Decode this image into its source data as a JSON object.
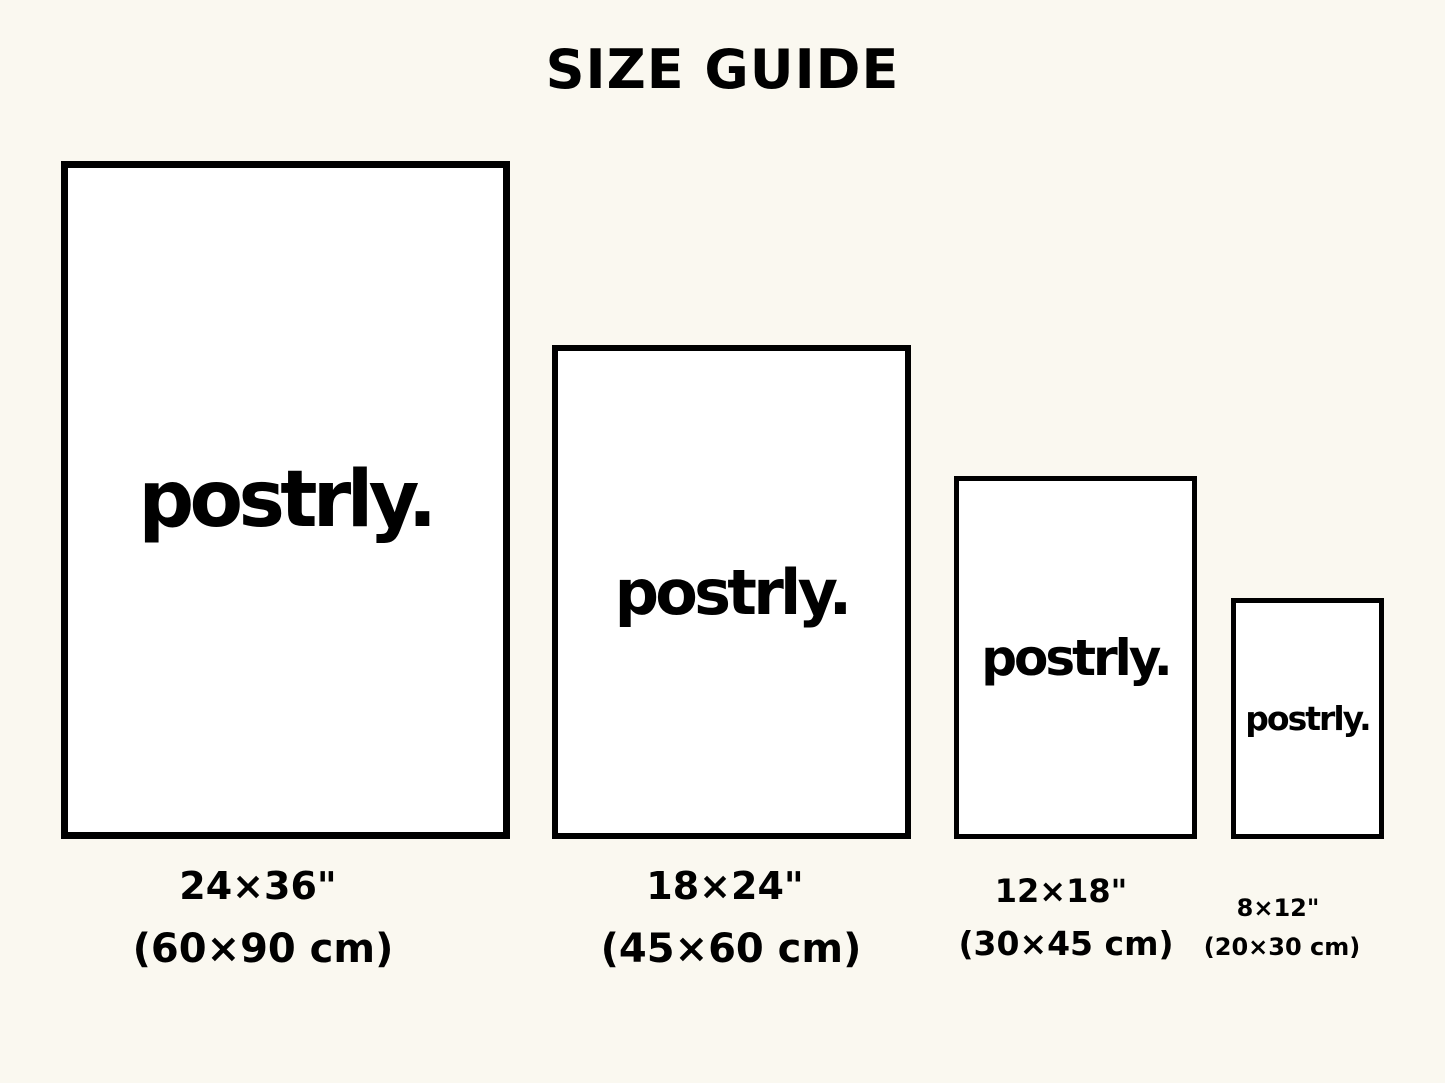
{
  "title": "SIZE GUIDE",
  "colors": {
    "background": "#faf8f0",
    "frame": "#000000",
    "poster": "#ffffff"
  },
  "sizes": [
    {
      "logo": "postrly.",
      "inches": "24×36\"",
      "cm": "(60×90 cm)"
    },
    {
      "logo": "postrly.",
      "inches": "18×24\"",
      "cm": "(45×60 cm)"
    },
    {
      "logo": "postrly.",
      "inches": "12×18\"",
      "cm": "(30×45 cm)"
    },
    {
      "logo": "postrly.",
      "inches": "8×12\"",
      "cm": "(20×30 cm)"
    }
  ]
}
